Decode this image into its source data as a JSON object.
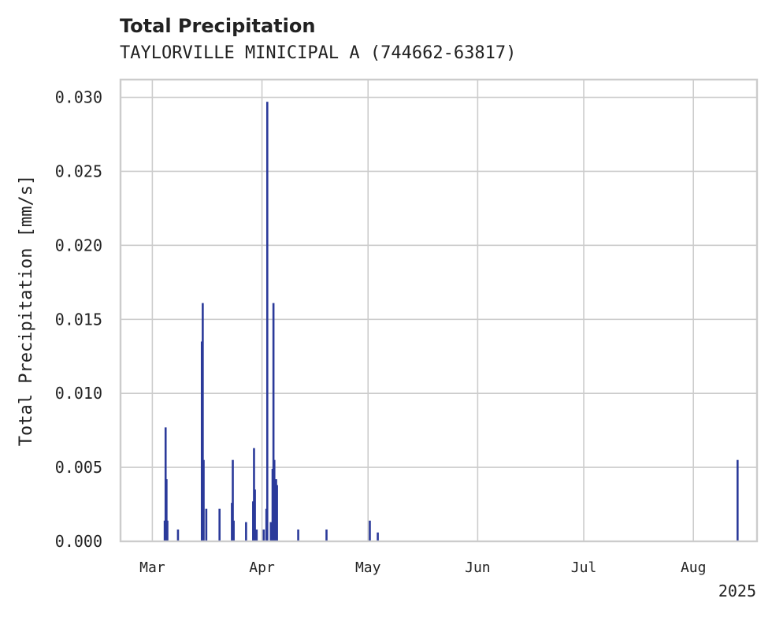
{
  "chart_data": {
    "type": "bar",
    "title": "Total Precipitation",
    "subtitle": "TAYLORVILLE MINICIPAL A (744662-63817)",
    "xlabel": "",
    "ylabel": "Total Precipitation [mm/s]",
    "ylim": [
      0,
      0.0312
    ],
    "xlim": [
      "2025-02-20",
      "2025-08-19"
    ],
    "grid": true,
    "color": "#2b3a9a",
    "yticks": [
      "0.000",
      "0.005",
      "0.010",
      "0.015",
      "0.020",
      "0.025",
      "0.030"
    ],
    "ytick_values": [
      0,
      0.005,
      0.01,
      0.015,
      0.02,
      0.025,
      0.03
    ],
    "xticks": [
      {
        "label": "Mar",
        "date": "2025-03-01"
      },
      {
        "label": "Apr",
        "date": "2025-04-01"
      },
      {
        "label": "May",
        "date": "2025-05-01"
      },
      {
        "label": "Jun",
        "date": "2025-06-01"
      },
      {
        "label": "Jul",
        "date": "2025-07-01"
      },
      {
        "label": "Aug",
        "date": "2025-08-01"
      }
    ],
    "x_offset_label": "2025",
    "points": [
      {
        "x": "2025-03-04T12:00",
        "y": 0.0014
      },
      {
        "x": "2025-03-04T18:00",
        "y": 0.0077
      },
      {
        "x": "2025-03-05T00:00",
        "y": 0.0042
      },
      {
        "x": "2025-03-05T06:00",
        "y": 0.0014
      },
      {
        "x": "2025-03-08T06:00",
        "y": 0.0008
      },
      {
        "x": "2025-03-15T00:00",
        "y": 0.0135
      },
      {
        "x": "2025-03-15T06:00",
        "y": 0.0161
      },
      {
        "x": "2025-03-15T12:00",
        "y": 0.0055
      },
      {
        "x": "2025-03-16T06:00",
        "y": 0.0022
      },
      {
        "x": "2025-03-20T00:00",
        "y": 0.0022
      },
      {
        "x": "2025-03-23T12:00",
        "y": 0.0026
      },
      {
        "x": "2025-03-23T18:00",
        "y": 0.0055
      },
      {
        "x": "2025-03-24T00:00",
        "y": 0.0014
      },
      {
        "x": "2025-03-27T12:00",
        "y": 0.0013
      },
      {
        "x": "2025-03-29T12:00",
        "y": 0.0027
      },
      {
        "x": "2025-03-29T18:00",
        "y": 0.0063
      },
      {
        "x": "2025-03-30T00:00",
        "y": 0.0035
      },
      {
        "x": "2025-03-30T12:00",
        "y": 0.0008
      },
      {
        "x": "2025-04-01T12:00",
        "y": 0.0008
      },
      {
        "x": "2025-04-02T06:00",
        "y": 0.0022
      },
      {
        "x": "2025-04-02T12:00",
        "y": 0.0297
      },
      {
        "x": "2025-04-03T12:00",
        "y": 0.0013
      },
      {
        "x": "2025-04-04T00:00",
        "y": 0.0049
      },
      {
        "x": "2025-04-04T06:00",
        "y": 0.0161
      },
      {
        "x": "2025-04-04T12:00",
        "y": 0.0055
      },
      {
        "x": "2025-04-05T00:00",
        "y": 0.0042
      },
      {
        "x": "2025-04-05T06:00",
        "y": 0.0038
      },
      {
        "x": "2025-04-11T06:00",
        "y": 0.0008
      },
      {
        "x": "2025-04-19T06:00",
        "y": 0.0008
      },
      {
        "x": "2025-05-01T12:00",
        "y": 0.0014
      },
      {
        "x": "2025-05-03T18:00",
        "y": 0.0006
      },
      {
        "x": "2025-08-13T12:00",
        "y": 0.0055
      }
    ]
  }
}
